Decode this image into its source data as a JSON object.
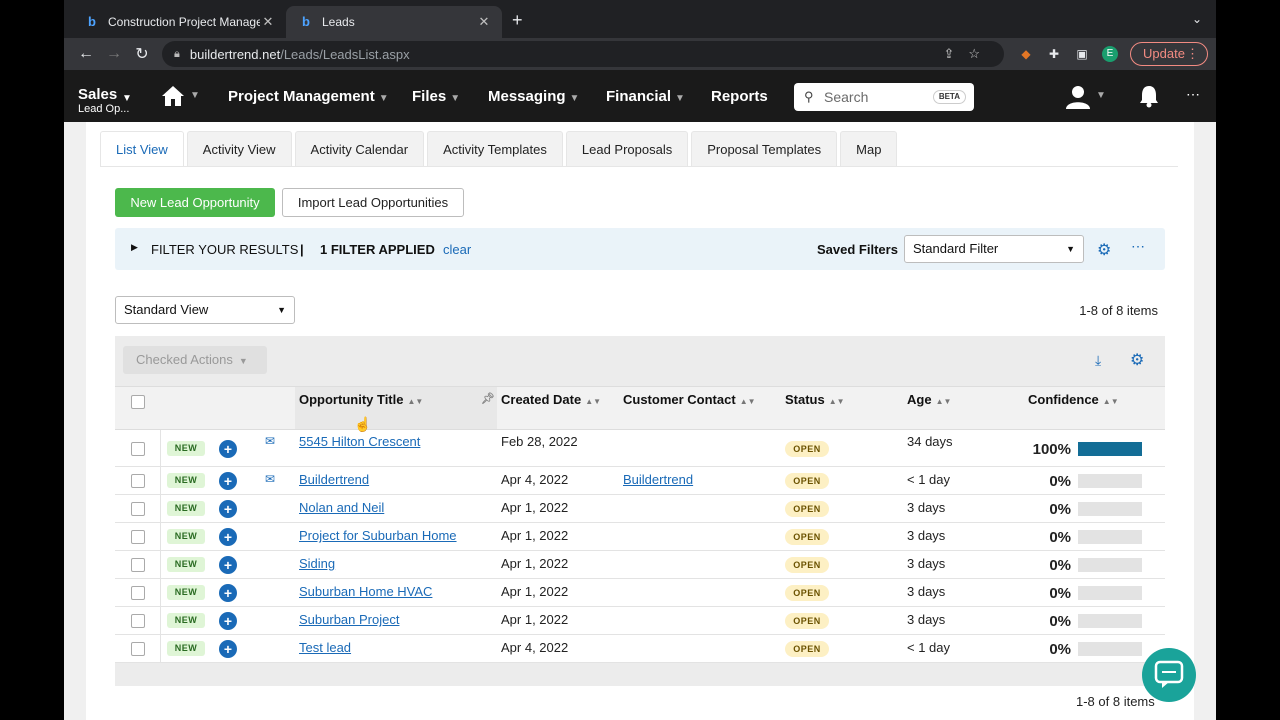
{
  "browser": {
    "tabs": [
      {
        "title": "Construction Project Managem",
        "active": false
      },
      {
        "title": "Leads",
        "active": true
      }
    ],
    "url_host": "buildertrend.net",
    "url_path": "/Leads/LeadsList.aspx",
    "update_label": "Update",
    "profile_initial": "E"
  },
  "appnav": {
    "brand_title": "Sales",
    "brand_sub": "Lead Op...",
    "items": [
      "Project Management",
      "Files",
      "Messaging",
      "Financial",
      "Reports"
    ],
    "search_placeholder": "Search",
    "search_badge": "BETA"
  },
  "tabs": [
    "List View",
    "Activity View",
    "Activity Calendar",
    "Activity Templates",
    "Lead Proposals",
    "Proposal Templates",
    "Map"
  ],
  "buttons": {
    "new_lead": "New Lead Opportunity",
    "import": "Import Lead Opportunities"
  },
  "filter": {
    "label": "FILTER YOUR RESULTS",
    "separator": "|",
    "applied": "1 FILTER APPLIED",
    "clear": "clear",
    "saved_label": "Saved Filters",
    "saved_value": "Standard Filter"
  },
  "view": {
    "selected": "Standard View",
    "count": "1-8 of 8 items"
  },
  "grid": {
    "checked_actions": "Checked Actions",
    "columns": [
      "Opportunity Title",
      "Created Date",
      "Customer Contact",
      "Status",
      "Age",
      "Confidence"
    ],
    "rows": [
      {
        "badge": "NEW",
        "title": "5545 Hilton Crescent",
        "date": "Feb 28, 2022",
        "contact": "",
        "status": "OPEN",
        "age": "34 days",
        "confidence": "100%",
        "confidence_value": 1.0,
        "mail": true
      },
      {
        "badge": "NEW",
        "title": "Buildertrend",
        "date": "Apr 4, 2022",
        "contact": "Buildertrend",
        "status": "OPEN",
        "age": "< 1 day",
        "confidence": "0%",
        "confidence_value": 0,
        "mail": true
      },
      {
        "badge": "NEW",
        "title": "Nolan and Neil",
        "date": "Apr 1, 2022",
        "contact": "",
        "status": "OPEN",
        "age": "3 days",
        "confidence": "0%",
        "confidence_value": 0,
        "mail": false
      },
      {
        "badge": "NEW",
        "title": "Project for Suburban Home",
        "date": "Apr 1, 2022",
        "contact": "",
        "status": "OPEN",
        "age": "3 days",
        "confidence": "0%",
        "confidence_value": 0,
        "mail": false
      },
      {
        "badge": "NEW",
        "title": "Siding",
        "date": "Apr 1, 2022",
        "contact": "",
        "status": "OPEN",
        "age": "3 days",
        "confidence": "0%",
        "confidence_value": 0,
        "mail": false
      },
      {
        "badge": "NEW",
        "title": "Suburban Home HVAC",
        "date": "Apr 1, 2022",
        "contact": "",
        "status": "OPEN",
        "age": "3 days",
        "confidence": "0%",
        "confidence_value": 0,
        "mail": false
      },
      {
        "badge": "NEW",
        "title": "Suburban Project",
        "date": "Apr 1, 2022",
        "contact": "",
        "status": "OPEN",
        "age": "3 days",
        "confidence": "0%",
        "confidence_value": 0,
        "mail": false
      },
      {
        "badge": "NEW",
        "title": "Test lead",
        "date": "Apr 4, 2022",
        "contact": "",
        "status": "OPEN",
        "age": "< 1 day",
        "confidence": "0%",
        "confidence_value": 0,
        "mail": false
      }
    ]
  },
  "footer_count": "1-8 of 8 items",
  "colors": {
    "accent": "#1a6ab7",
    "green": "#4cb84c",
    "confidence_bar": "#136d96"
  }
}
